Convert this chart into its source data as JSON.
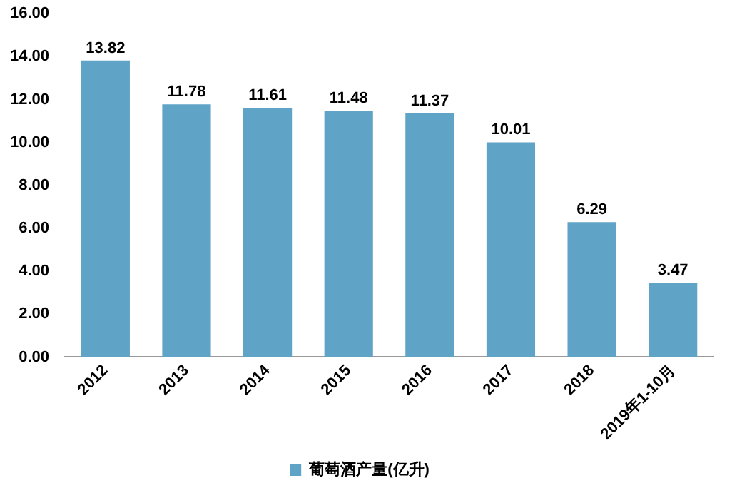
{
  "chart_data": {
    "type": "bar",
    "categories": [
      "2012",
      "2013",
      "2014",
      "2015",
      "2016",
      "2017",
      "2018",
      "2019年1-10月"
    ],
    "series": [
      {
        "name": "葡萄酒产量(亿升)",
        "color": "#5fa3c6",
        "values": [
          13.82,
          11.78,
          11.61,
          11.48,
          11.37,
          10.01,
          6.29,
          3.47
        ]
      }
    ],
    "ylim": [
      0,
      16
    ],
    "yticks": [
      {
        "value": 0,
        "label": "0.00"
      },
      {
        "value": 2,
        "label": "2.00"
      },
      {
        "value": 4,
        "label": "4.00"
      },
      {
        "value": 6,
        "label": "6.00"
      },
      {
        "value": 8,
        "label": "8.00"
      },
      {
        "value": 10,
        "label": "10.00"
      },
      {
        "value": 12,
        "label": "12.00"
      },
      {
        "value": 14,
        "label": "14.00"
      },
      {
        "value": 16,
        "label": "16.00"
      }
    ],
    "grid": false,
    "legend": "bottom",
    "data_labels": true
  }
}
